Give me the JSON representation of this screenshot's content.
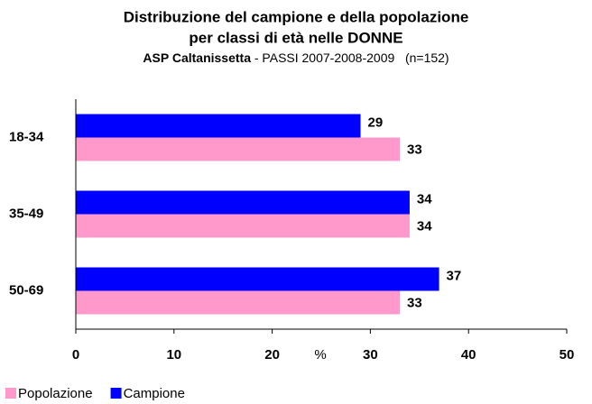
{
  "chart_data": {
    "type": "hbar",
    "title": [
      "Distribuzione del campione e della popolazione",
      "per classi di età nelle DONNE"
    ],
    "subtitle_bold": "ASP Caltanissetta",
    "subtitle": "- PASSI 2007-2008-2009   (n=152)",
    "x_label": "%",
    "categories": [
      "18-34",
      "35-49",
      "50-69"
    ],
    "series": [
      {
        "name": "Popolazione",
        "color": "#ff99cc",
        "values": [
          33,
          34,
          33
        ]
      },
      {
        "name": "Campione",
        "color": "#0000ff",
        "values": [
          29,
          34,
          37
        ]
      }
    ],
    "xlim": [
      0,
      50
    ],
    "xticks": [
      0,
      10,
      20,
      30,
      40,
      50
    ]
  }
}
